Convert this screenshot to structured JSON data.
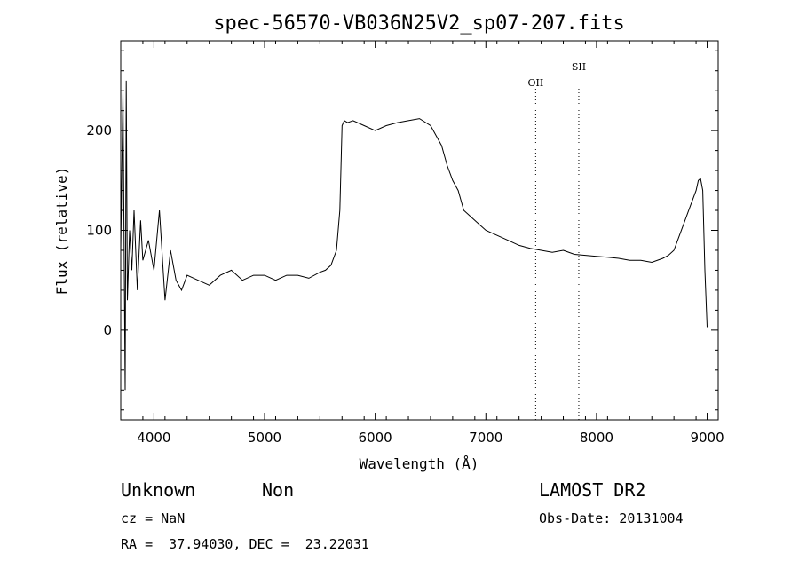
{
  "chart_data": {
    "type": "line",
    "title": "spec-56570-VB036N25V2_sp07-207.fits",
    "xlabel": "Wavelength (Å)",
    "ylabel": "Flux (relative)",
    "xlim": [
      3700,
      9100
    ],
    "ylim": [
      -90,
      290
    ],
    "xticks": [
      4000,
      5000,
      6000,
      7000,
      8000,
      9000
    ],
    "yticks": [
      0,
      100,
      200
    ],
    "grid": false,
    "line_color": "#000000",
    "series": [
      {
        "x": [
          3700,
          3720,
          3740,
          3750,
          3760,
          3780,
          3800,
          3820,
          3850,
          3880,
          3900,
          3950,
          4000,
          4050,
          4100,
          4150,
          4200,
          4250,
          4300,
          4400,
          4500,
          4600,
          4700,
          4800,
          4900,
          5000,
          5100,
          5200,
          5300,
          5400,
          5500,
          5550,
          5600,
          5650,
          5680,
          5700,
          5720,
          5750,
          5800,
          5900,
          6000,
          6100,
          6200,
          6300,
          6400,
          6500,
          6550,
          6600,
          6650,
          6700,
          6750,
          6800,
          6900,
          7000,
          7100,
          7200,
          7300,
          7400,
          7500,
          7600,
          7700,
          7800,
          7900,
          8000,
          8100,
          8200,
          8300,
          8400,
          8500,
          8600,
          8650,
          8700,
          8750,
          8800,
          8850,
          8900,
          8920,
          8940,
          8960,
          8980,
          9000
        ],
        "y": [
          80,
          240,
          -60,
          250,
          30,
          100,
          60,
          120,
          40,
          110,
          70,
          90,
          60,
          120,
          30,
          80,
          50,
          40,
          55,
          50,
          45,
          55,
          60,
          50,
          55,
          55,
          50,
          55,
          55,
          52,
          58,
          60,
          65,
          80,
          120,
          205,
          210,
          208,
          210,
          205,
          200,
          205,
          208,
          210,
          212,
          205,
          195,
          185,
          165,
          150,
          140,
          120,
          110,
          100,
          95,
          90,
          85,
          82,
          80,
          78,
          80,
          76,
          75,
          74,
          73,
          72,
          70,
          70,
          68,
          72,
          75,
          80,
          95,
          110,
          125,
          140,
          150,
          152,
          140,
          60,
          3
        ]
      }
    ],
    "annotations": [
      {
        "label": "OII",
        "x": 7450
      },
      {
        "label": "SII",
        "x": 7840
      }
    ]
  },
  "info": {
    "class_label": "Unknown",
    "subclass_label": "Non",
    "survey": "LAMOST DR2",
    "redshift": "cz = NaN",
    "obs_date": "Obs-Date: 20131004",
    "coords": "RA =  37.94030, DEC =  23.22031"
  }
}
